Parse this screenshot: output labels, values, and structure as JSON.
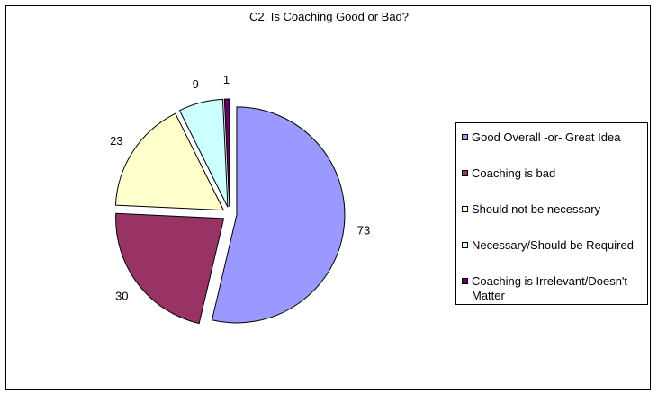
{
  "chart_data": {
    "type": "pie",
    "title": "C2. Is Coaching Good or Bad?",
    "categories": [
      "Good Overall -or- Great Idea",
      "Coaching is bad",
      "Should not be necessary",
      "Necessary/Should be Required",
      "Coaching is Irrelevant/Doesn't Matter"
    ],
    "values": [
      73,
      30,
      23,
      9,
      1
    ],
    "colors": [
      "#9999ff",
      "#993366",
      "#ffffcc",
      "#ccffff",
      "#660066"
    ],
    "exploded": true,
    "legend_position": "right",
    "data_labels": true
  }
}
